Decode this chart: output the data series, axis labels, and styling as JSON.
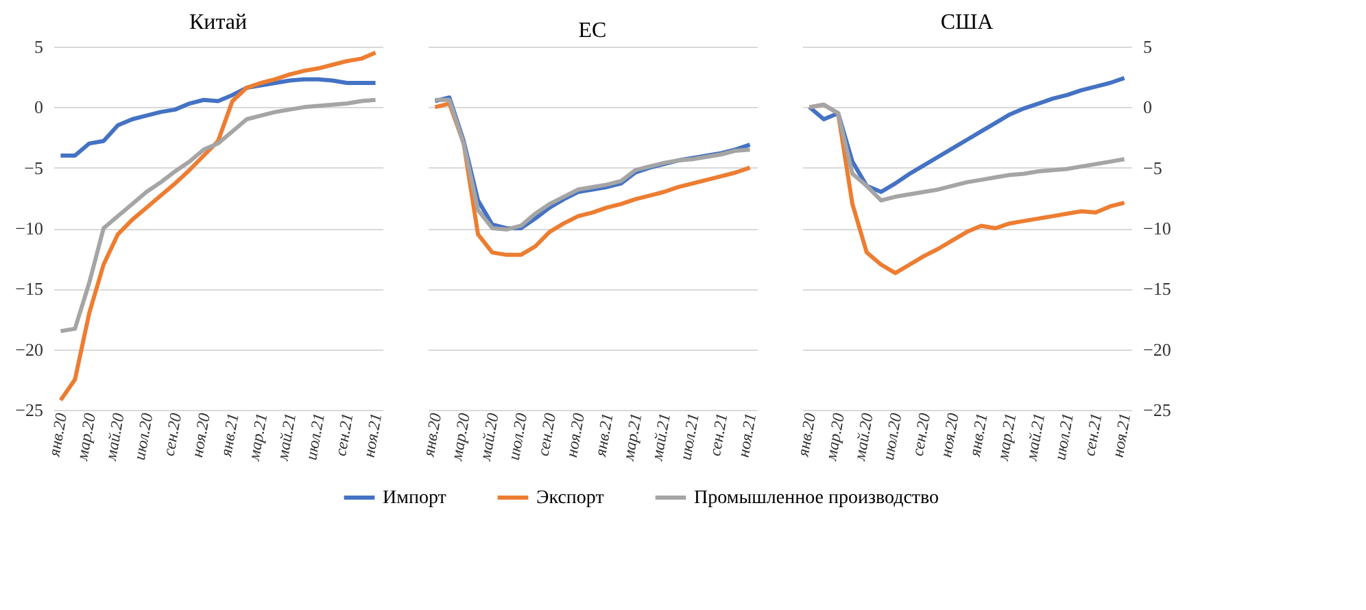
{
  "chart_data": [
    {
      "type": "line",
      "title": "Китай",
      "categories": [
        "янв.20",
        null,
        "мар.20",
        null,
        "май.20",
        null,
        "июл.20",
        null,
        "сен.20",
        null,
        "ноя.20",
        null,
        "янв.21",
        null,
        "мар.21",
        null,
        "май.21",
        null,
        "июл.21",
        null,
        "сен.21",
        null,
        "ноя.21"
      ],
      "ylim": [
        -25,
        5
      ],
      "yticks": [
        -25,
        -20,
        -15,
        -10,
        -5,
        0,
        5
      ],
      "grid": "y",
      "legend": "bottom",
      "series": [
        {
          "name": "Импорт",
          "color": "#4472c4",
          "values": [
            -4.0,
            -4.0,
            -3.0,
            -2.8,
            -1.5,
            -1.0,
            -0.7,
            -0.4,
            -0.2,
            0.3,
            0.6,
            0.5,
            1.0,
            1.6,
            1.8,
            2.0,
            2.2,
            2.3,
            2.3,
            2.2,
            2.0,
            2.0,
            2.0
          ]
        },
        {
          "name": "Экспорт",
          "color": "#ed7d31",
          "values": [
            -24.2,
            -22.5,
            -17.0,
            -13.0,
            -10.5,
            -9.3,
            -8.3,
            -7.3,
            -6.3,
            -5.2,
            -4.0,
            -2.8,
            0.5,
            1.6,
            2.0,
            2.3,
            2.7,
            3.0,
            3.2,
            3.5,
            3.8,
            4.0,
            4.5
          ]
        },
        {
          "name": "Промышленное производство",
          "color": "#a5a5a5",
          "values": [
            -18.5,
            -18.3,
            -14.5,
            -10.0,
            -9.0,
            -8.0,
            -7.0,
            -6.2,
            -5.3,
            -4.5,
            -3.5,
            -3.0,
            -2.0,
            -1.0,
            -0.7,
            -0.4,
            -0.2,
            0.0,
            0.1,
            0.2,
            0.3,
            0.5,
            0.6
          ]
        }
      ]
    },
    {
      "type": "line",
      "title": "ЕС",
      "categories": [
        "янв.20",
        null,
        "мар.20",
        null,
        "май.20",
        null,
        "июл.20",
        null,
        "сен.20",
        null,
        "ноя.20",
        null,
        "янв.21",
        null,
        "мар.21",
        null,
        "май.21",
        null,
        "июл.21",
        null,
        "сен.21",
        null,
        "ноя.21"
      ],
      "ylim": [
        -25,
        5
      ],
      "yticks": [
        -25,
        -20,
        -15,
        -10,
        -5,
        0,
        5
      ],
      "grid": "y",
      "legend": "bottom",
      "tick_labels": "x",
      "series": [
        {
          "name": "Импорт",
          "color": "#4472c4",
          "values": [
            0.5,
            0.8,
            -2.8,
            -7.7,
            -9.7,
            -10.0,
            -10.0,
            -9.2,
            -8.3,
            -7.6,
            -7.0,
            -6.8,
            -6.6,
            -6.3,
            -5.4,
            -5.0,
            -4.7,
            -4.4,
            -4.2,
            -4.0,
            -3.8,
            -3.5,
            -3.1
          ]
        },
        {
          "name": "Экспорт",
          "color": "#ed7d31",
          "values": [
            0.0,
            0.3,
            -3.0,
            -10.5,
            -12.0,
            -12.2,
            -12.2,
            -11.5,
            -10.3,
            -9.6,
            -9.0,
            -8.7,
            -8.3,
            -8.0,
            -7.6,
            -7.3,
            -7.0,
            -6.6,
            -6.3,
            -6.0,
            -5.7,
            -5.4,
            -5.0
          ]
        },
        {
          "name": "Промышленное производство",
          "color": "#a5a5a5",
          "values": [
            0.6,
            0.6,
            -3.0,
            -8.5,
            -10.0,
            -10.1,
            -9.8,
            -8.8,
            -8.0,
            -7.4,
            -6.8,
            -6.6,
            -6.4,
            -6.1,
            -5.2,
            -4.9,
            -4.6,
            -4.4,
            -4.3,
            -4.1,
            -3.9,
            -3.6,
            -3.5
          ]
        }
      ]
    },
    {
      "type": "line",
      "title": "США",
      "categories": [
        "янв.20",
        null,
        "мар.20",
        null,
        "май.20",
        null,
        "июл.20",
        null,
        "сен.20",
        null,
        "ноя.20",
        null,
        "янв.21",
        null,
        "мар.21",
        null,
        "май.21",
        null,
        "июл.21",
        null,
        "сен.21",
        null,
        "ноя.21"
      ],
      "y2lim": [
        -25,
        5
      ],
      "y2ticks": [
        -25,
        -20,
        -15,
        -10,
        -5,
        0,
        5
      ],
      "grid": "y",
      "legend": "bottom",
      "series": [
        {
          "name": "Импорт",
          "color": "#4472c4",
          "axis": "y2",
          "values": [
            0.0,
            -1.0,
            -0.5,
            -4.5,
            -6.5,
            -7.0,
            -6.3,
            -5.5,
            -4.8,
            -4.1,
            -3.4,
            -2.7,
            -2.0,
            -1.3,
            -0.6,
            -0.1,
            0.3,
            0.7,
            1.0,
            1.4,
            1.7,
            2.0,
            2.4
          ]
        },
        {
          "name": "Экспорт",
          "color": "#ed7d31",
          "axis": "y2",
          "values": [
            0.0,
            0.2,
            -0.5,
            -8.0,
            -12.0,
            -13.0,
            -13.7,
            -13.0,
            -12.3,
            -11.7,
            -11.0,
            -10.3,
            -9.8,
            -10.0,
            -9.6,
            -9.4,
            -9.2,
            -9.0,
            -8.8,
            -8.6,
            -8.7,
            -8.2,
            -7.9
          ]
        },
        {
          "name": "Промышленное производство",
          "color": "#a5a5a5",
          "axis": "y2",
          "values": [
            0.0,
            0.2,
            -0.5,
            -5.5,
            -6.5,
            -7.7,
            -7.4,
            -7.2,
            -7.0,
            -6.8,
            -6.5,
            -6.2,
            -6.0,
            -5.8,
            -5.6,
            -5.5,
            -5.3,
            -5.2,
            -5.1,
            -4.9,
            -4.7,
            -4.5,
            -4.3
          ]
        }
      ]
    }
  ]
}
